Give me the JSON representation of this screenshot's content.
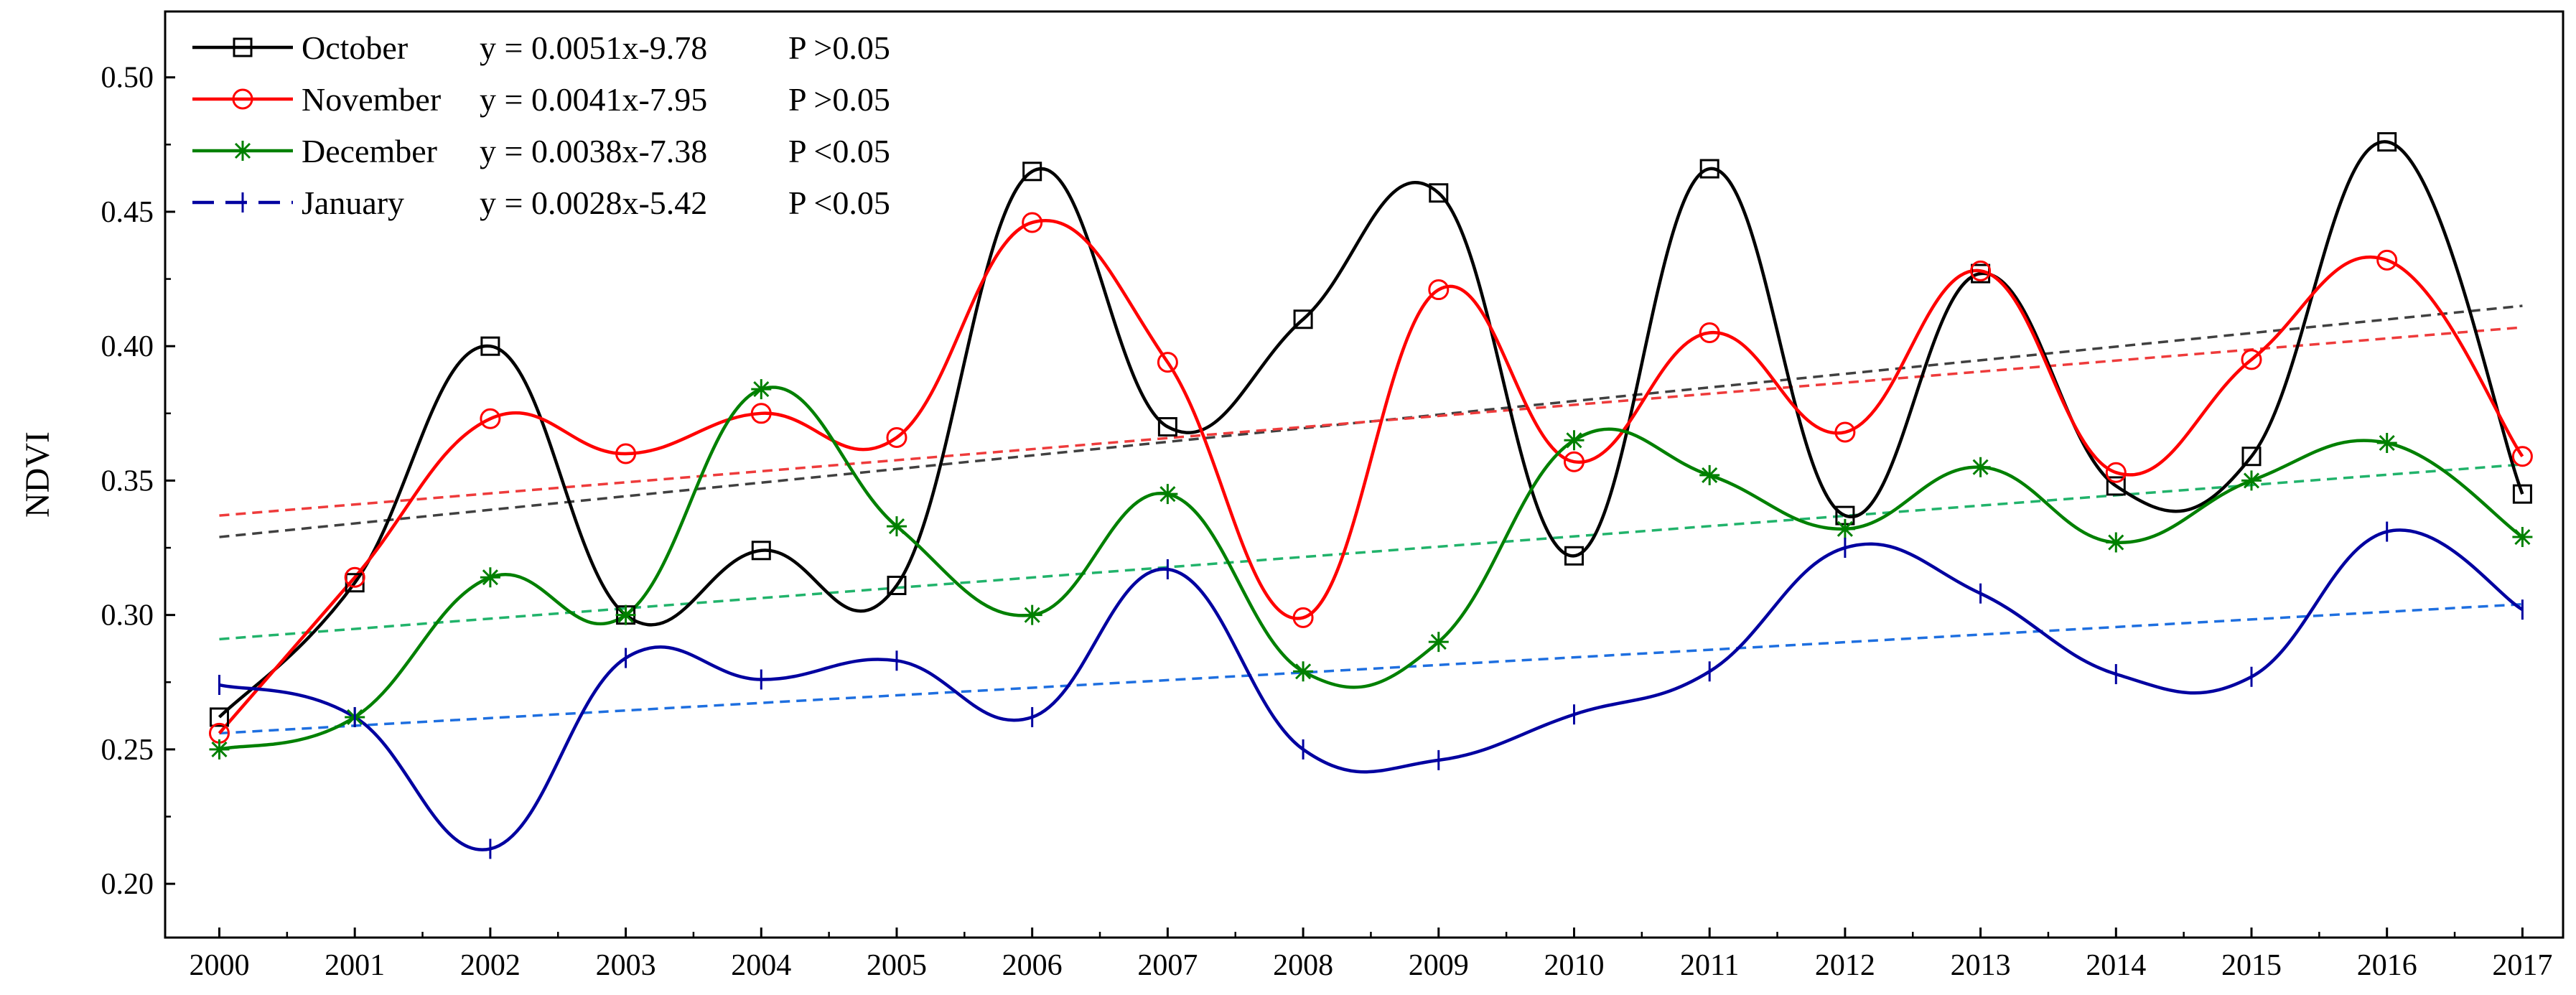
{
  "chart_data": {
    "type": "line",
    "title": "",
    "xlabel": "",
    "ylabel": "NDVI",
    "xlim": [
      1999.6,
      2017.3
    ],
    "ylim": [
      0.18,
      0.5245
    ],
    "x": [
      2000,
      2001,
      2002,
      2003,
      2004,
      2005,
      2006,
      2007,
      2008,
      2009,
      2010,
      2011,
      2012,
      2013,
      2014,
      2015,
      2016,
      2017
    ],
    "x_tick_labels": [
      "2000",
      "2001",
      "2002",
      "2003",
      "2004",
      "2005",
      "2006",
      "2007",
      "2008",
      "2009",
      "2010",
      "2011",
      "2012",
      "2013",
      "2014",
      "2015",
      "2016",
      "2017"
    ],
    "y_ticks": [
      0.2,
      0.25,
      0.3,
      0.35,
      0.4,
      0.45,
      0.5
    ],
    "y_tick_labels": [
      "0.20",
      "0.25",
      "0.30",
      "0.35",
      "0.40",
      "0.45",
      "0.50"
    ],
    "grid": false,
    "legend_position": "top-left",
    "series": [
      {
        "name": "October",
        "color": "#000000",
        "marker": "square",
        "trend_color": "#404040",
        "equation": "y = 0.0051x-9.78",
        "pvalue": "P >0.05",
        "slope": 0.0051,
        "trend_start": 0.329,
        "trend_end": 0.415,
        "values": [
          0.262,
          0.312,
          0.4,
          0.3,
          0.324,
          0.311,
          0.465,
          0.37,
          0.41,
          0.457,
          0.322,
          0.466,
          0.337,
          0.427,
          0.348,
          0.359,
          0.476,
          0.345
        ]
      },
      {
        "name": "November",
        "color": "#ff0000",
        "marker": "circle",
        "trend_color": "#ee3b3b",
        "equation": "y = 0.0041x-7.95",
        "pvalue": "P >0.05",
        "slope": 0.0041,
        "trend_start": 0.337,
        "trend_end": 0.407,
        "values": [
          0.256,
          0.314,
          0.373,
          0.36,
          0.375,
          0.366,
          0.446,
          0.394,
          0.299,
          0.421,
          0.357,
          0.405,
          0.368,
          0.428,
          0.353,
          0.395,
          0.432,
          0.359
        ]
      },
      {
        "name": "December",
        "color": "#008000",
        "marker": "asterisk",
        "trend_color": "#21b36b",
        "equation": "y = 0.0038x-7.38",
        "pvalue": "P <0.05",
        "slope": 0.0038,
        "trend_start": 0.291,
        "trend_end": 0.356,
        "values": [
          0.25,
          0.262,
          0.314,
          0.3,
          0.384,
          0.333,
          0.3,
          0.345,
          0.279,
          0.29,
          0.365,
          0.352,
          0.332,
          0.355,
          0.327,
          0.35,
          0.364,
          0.329
        ]
      },
      {
        "name": "January",
        "color": "#0000a0",
        "marker": "vbar",
        "trend_color": "#1e6fe0",
        "equation": "y = 0.0028x-5.42",
        "pvalue": "P <0.05",
        "slope": 0.0028,
        "trend_start": 0.256,
        "trend_end": 0.304,
        "values": [
          0.274,
          0.262,
          0.213,
          0.284,
          0.276,
          0.283,
          0.262,
          0.317,
          0.25,
          0.246,
          0.263,
          0.279,
          0.325,
          0.308,
          0.278,
          0.277,
          0.331,
          0.302
        ]
      }
    ]
  }
}
